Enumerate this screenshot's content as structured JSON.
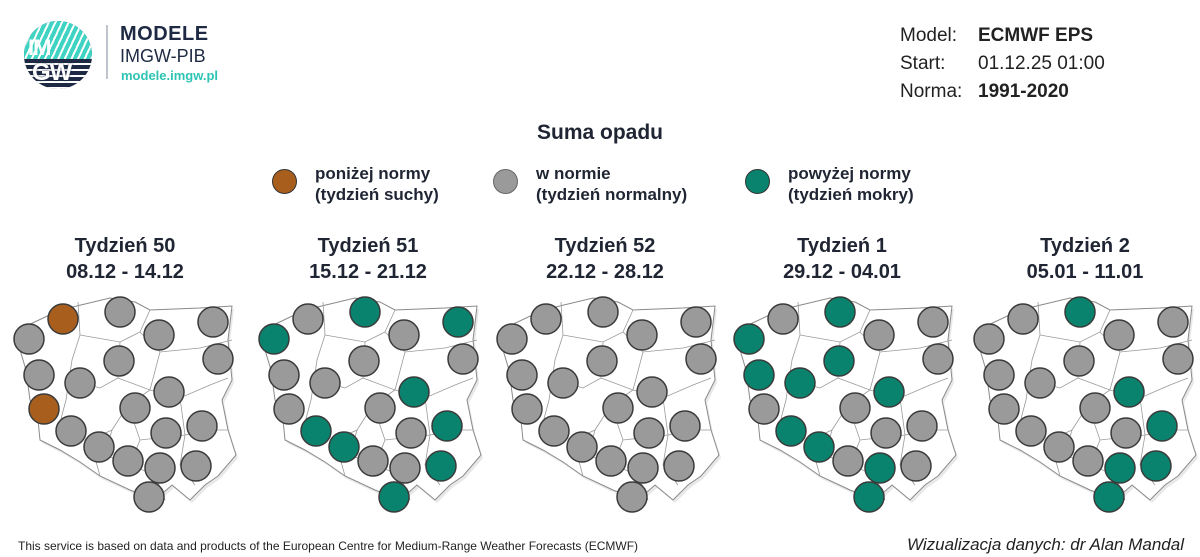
{
  "logo": {
    "badge_line1": "IM",
    "badge_line2": "GW",
    "title": "MODELE",
    "subtitle": "IMGW-PIB",
    "url": "modele.imgw.pl"
  },
  "meta": {
    "model_label": "Model:",
    "model_value": "ECMWF EPS",
    "start_label": "Start:",
    "start_value": "01.12.25 01:00",
    "norm_label": "Norma:",
    "norm_value": "1991-2020"
  },
  "title": "Suma opadu",
  "colors": {
    "below": "#a85f1e",
    "normal": "#9a9a9a",
    "above": "#0a836e"
  },
  "legend": [
    {
      "key": "below",
      "line1": "poniżej normy",
      "line2": "(tydzień suchy)",
      "color": "#a85f1e"
    },
    {
      "key": "normal",
      "line1": "w normie",
      "line2": "(tydzień normalny)",
      "color": "#9a9a9a"
    },
    {
      "key": "above",
      "line1": "powyżej normy",
      "line2": "(tydzień mokry)",
      "color": "#0a836e"
    }
  ],
  "weeks": [
    {
      "label": "Tydzień 50",
      "range": "08.12 - 14.12",
      "stations": [
        "below",
        "normal",
        "normal",
        "normal",
        "normal",
        "normal",
        "normal",
        "normal",
        "below",
        "normal",
        "normal",
        "normal",
        "normal",
        "normal",
        "normal",
        "normal",
        "normal",
        "normal",
        "normal",
        "normal"
      ]
    },
    {
      "label": "Tydzień 51",
      "range": "15.12 - 21.12",
      "stations": [
        "normal",
        "above",
        "above",
        "normal",
        "above",
        "normal",
        "normal",
        "normal",
        "normal",
        "normal",
        "above",
        "normal",
        "above",
        "normal",
        "above",
        "above",
        "normal",
        "normal",
        "above",
        "above"
      ]
    },
    {
      "label": "Tydzień 52",
      "range": "22.12 - 28.12",
      "stations": [
        "normal",
        "normal",
        "normal",
        "normal",
        "normal",
        "normal",
        "normal",
        "normal",
        "normal",
        "normal",
        "normal",
        "normal",
        "normal",
        "normal",
        "normal",
        "normal",
        "normal",
        "normal",
        "normal",
        "normal"
      ]
    },
    {
      "label": "Tydzień 1",
      "range": "29.12 - 04.01",
      "stations": [
        "normal",
        "above",
        "above",
        "normal",
        "normal",
        "above",
        "above",
        "normal",
        "normal",
        "above",
        "above",
        "normal",
        "above",
        "normal",
        "normal",
        "above",
        "normal",
        "above",
        "normal",
        "above"
      ]
    },
    {
      "label": "Tydzień 2",
      "range": "05.01 - 11.01",
      "stations": [
        "normal",
        "above",
        "normal",
        "normal",
        "normal",
        "normal",
        "normal",
        "normal",
        "normal",
        "normal",
        "above",
        "normal",
        "normal",
        "normal",
        "above",
        "normal",
        "normal",
        "above",
        "above",
        "above"
      ]
    }
  ],
  "footer": {
    "credit": "This service is based on data and products of the European Centre for Medium-Range Weather Forecasts (ECMWF)",
    "author": "Wizualizacja danych: dr Alan Mandal"
  }
}
